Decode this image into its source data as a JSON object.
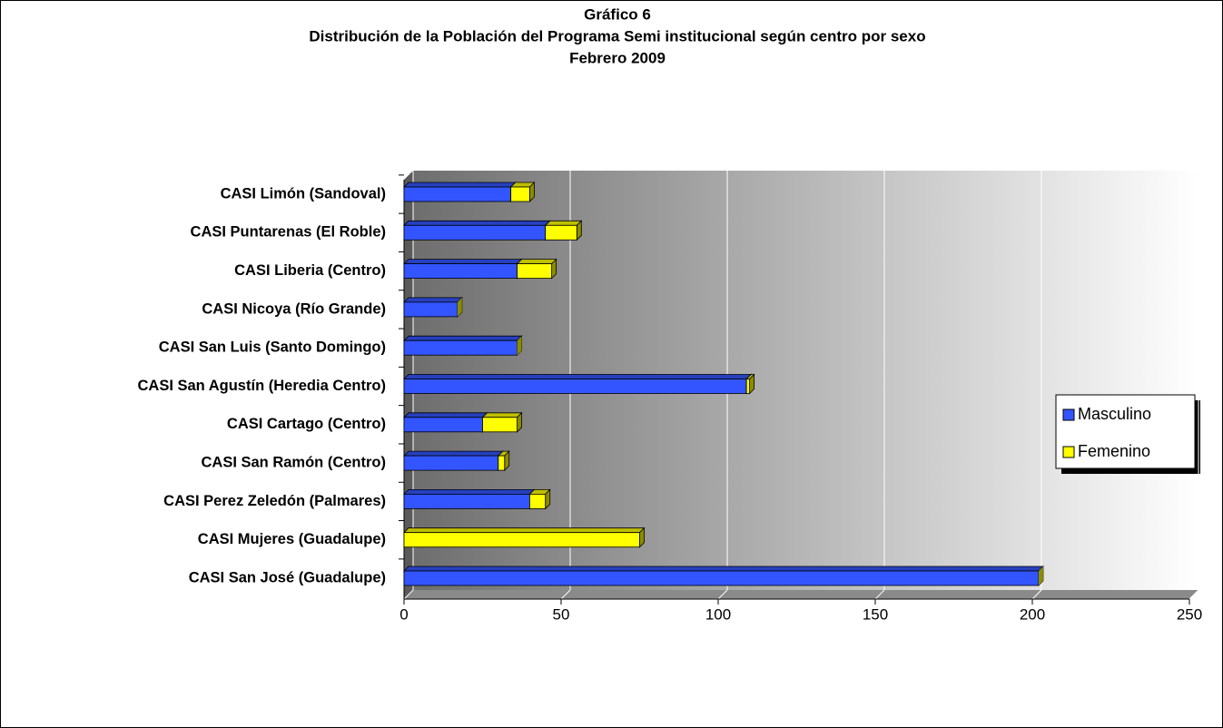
{
  "chart_data": {
    "type": "bar",
    "orientation": "horizontal",
    "stacked": true,
    "title": [
      "Gráfico 6",
      "Distribución de la Población del Programa Semi institucional según centro por sexo",
      "Febrero 2009"
    ],
    "categories": [
      "CASI Limón (Sandoval)",
      "CASI Puntarenas (El Roble)",
      "CASI Liberia (Centro)",
      "CASI Nicoya (Río Grande)",
      "CASI San Luis (Santo Domingo)",
      "CASI San Agustín (Heredia Centro)",
      "CASI Cartago (Centro)",
      "CASI San Ramón (Centro)",
      "CASI Perez  Zeledón (Palmares)",
      "CASI Mujeres (Guadalupe)",
      "CASI San José (Guadalupe)"
    ],
    "series": [
      {
        "name": "Masculino",
        "color": "#3355ff",
        "values": [
          34,
          45,
          36,
          17,
          36,
          109,
          25,
          30,
          40,
          0,
          202
        ]
      },
      {
        "name": "Femenino",
        "color": "#ffff00",
        "values": [
          6,
          10,
          11,
          0,
          0,
          1,
          11,
          2,
          5,
          75,
          0
        ]
      }
    ],
    "xlim": [
      0,
      250
    ],
    "xticks": [
      0,
      50,
      100,
      150,
      200,
      250
    ],
    "grid": true,
    "legend": "right"
  }
}
